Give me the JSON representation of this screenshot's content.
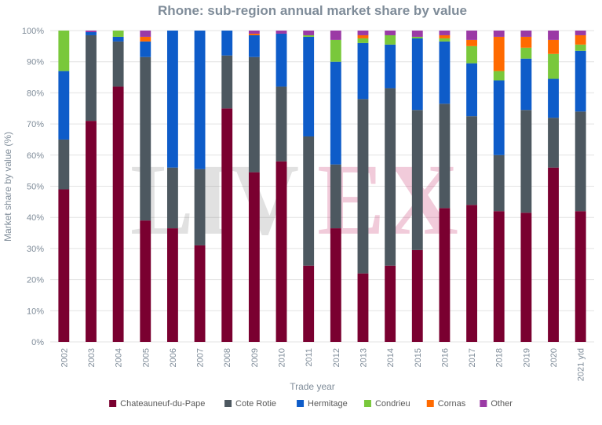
{
  "chart_data": {
    "type": "bar",
    "stacked": true,
    "title": "Rhone: sub-region annual market share by value",
    "xlabel": "Trade year",
    "ylabel": "Market share by value (%)",
    "ylim": [
      0,
      100
    ],
    "yticks": [
      0,
      10,
      20,
      30,
      40,
      50,
      60,
      70,
      80,
      90,
      100
    ],
    "ytick_suffix": "%",
    "grid": true,
    "legend_position": "bottom",
    "watermark": "LIV-EX",
    "categories": [
      "2002",
      "2003",
      "2004",
      "2005",
      "2006",
      "2007",
      "2008",
      "2009",
      "2010",
      "2011",
      "2012",
      "2013",
      "2014",
      "2015",
      "2016",
      "2017",
      "2018",
      "2019",
      "2020",
      "2021 ytd"
    ],
    "series": [
      {
        "name": "Chateauneuf-du-Pape",
        "color": "#7a0030",
        "values": [
          49,
          71,
          82,
          39,
          36.5,
          31,
          75,
          54.5,
          58,
          24.5,
          36.5,
          22,
          24.5,
          29.5,
          43,
          44,
          42,
          41.5,
          56,
          42
        ]
      },
      {
        "name": "Cote Rotie",
        "color": "#4d5860",
        "values": [
          16,
          27.5,
          14.5,
          52.5,
          19.5,
          24.5,
          17,
          37,
          24,
          41.5,
          20.5,
          56,
          57,
          45,
          33.5,
          28.5,
          18,
          33,
          16,
          32
        ]
      },
      {
        "name": "Hermitage",
        "color": "#0e5cc9",
        "values": [
          22,
          1,
          1.5,
          5,
          44,
          44.5,
          8,
          7,
          17,
          32,
          33,
          18,
          14,
          23,
          20,
          17,
          24,
          16.5,
          12.5,
          19.5
        ]
      },
      {
        "name": "Condrieu",
        "color": "#79c83b",
        "values": [
          13,
          0,
          2,
          0,
          0,
          0,
          0,
          0,
          0,
          0.5,
          7,
          1.5,
          3,
          0.5,
          1,
          5.5,
          3,
          3.5,
          8,
          2
        ]
      },
      {
        "name": "Cornas",
        "color": "#ff6a00",
        "values": [
          0,
          0,
          0,
          1.5,
          0,
          0,
          0,
          0.5,
          0,
          0,
          0,
          1,
          0,
          0,
          1,
          2,
          11,
          3.5,
          4.5,
          3
        ]
      },
      {
        "name": "Other",
        "color": "#9b3aa5",
        "values": [
          0,
          0.5,
          0,
          2,
          0,
          0,
          0,
          1,
          1,
          1.5,
          3,
          1.5,
          1.5,
          2,
          1.5,
          3,
          2,
          2,
          3,
          1.5
        ]
      }
    ]
  }
}
